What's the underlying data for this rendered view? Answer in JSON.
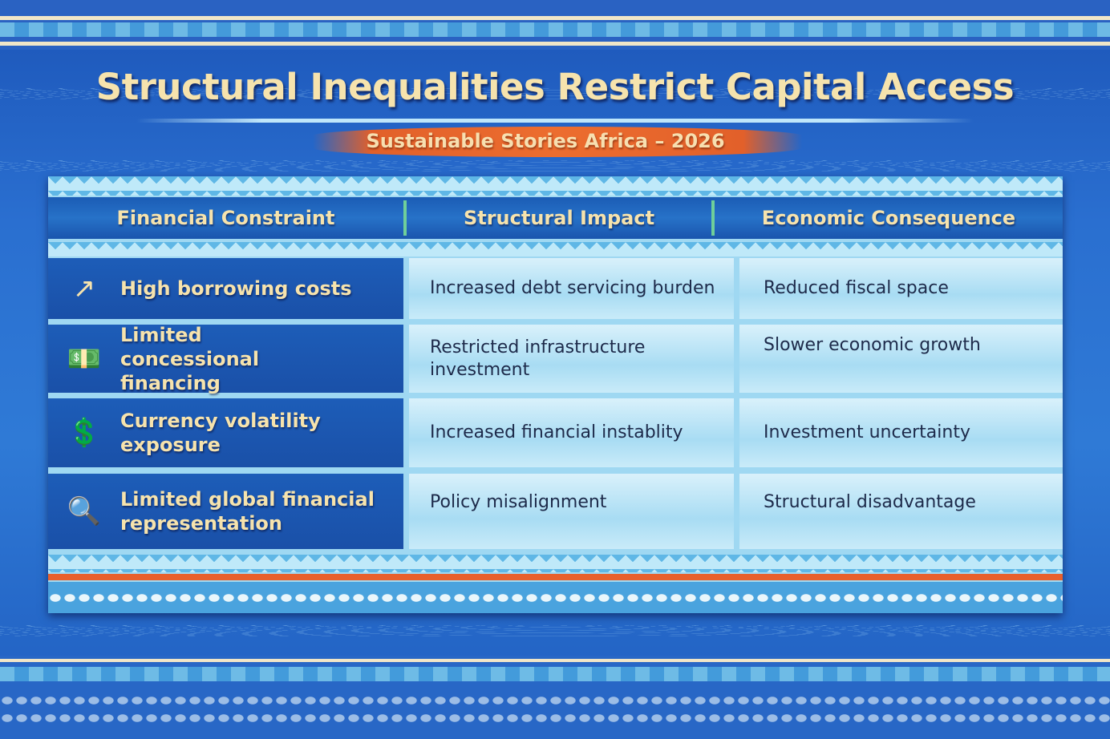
{
  "header": {
    "title": "Structural Inequalities Restrict Capital Access",
    "subtitle": "Sustainable Stories Africa – 2026"
  },
  "table": {
    "columns": [
      "Financial Constraint",
      "Structural Impact",
      "Economic Consequence"
    ],
    "rows": [
      {
        "icon": "rising-cost-arrow-icon",
        "constraint": "High borrowing costs",
        "impact": "Increased debt servicing burden",
        "consequence": "Reduced fiscal space"
      },
      {
        "icon": "dollar-bill-hand-icon",
        "constraint": "Limited concessional financing",
        "impact": "Restricted infrastructure investment",
        "consequence": "Slower economic growth"
      },
      {
        "icon": "currency-exchange-icon",
        "constraint": "Currency volatility exposure",
        "impact": "Increased financial instablity",
        "consequence": "Investment uncertainty"
      },
      {
        "icon": "magnifier-monitor-icon",
        "constraint": "Limited global financial representation",
        "impact": "Policy misalignment",
        "consequence": "Structural disadvantage"
      }
    ]
  },
  "colors": {
    "title": "#f6e3ad",
    "accent_orange": "#e8602c",
    "dark_blue": "#1d5db8",
    "light_blue": "#a8dcf3"
  }
}
